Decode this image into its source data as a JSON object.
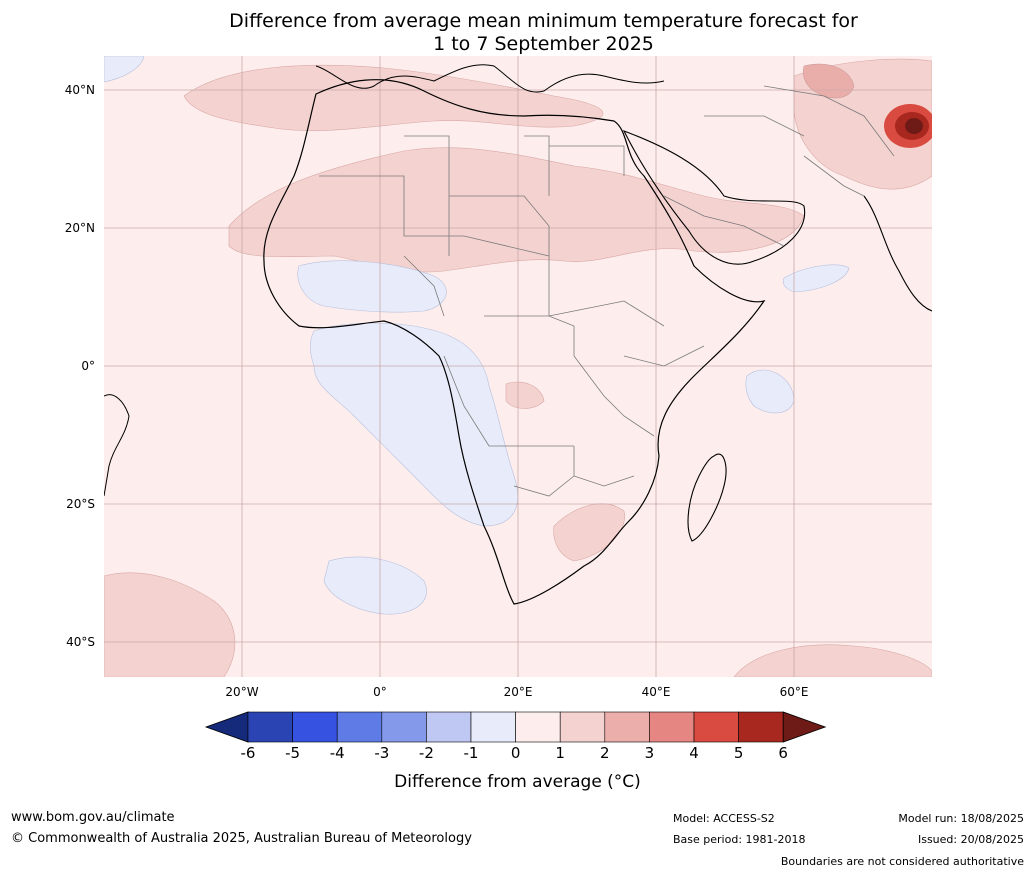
{
  "title": {
    "line1": "Difference from average mean minimum temperature forecast for",
    "line2": "1 to 7 September 2025"
  },
  "map": {
    "latitude_labels": [
      "40°N",
      "20°N",
      "0°",
      "20°S",
      "40°S"
    ],
    "longitude_labels": [
      "20°W",
      "0°",
      "20°E",
      "40°E",
      "60°E"
    ],
    "colors": {
      "ocean_base": "#fdeeed",
      "anomaly_0_1": "#fdeeed",
      "anomaly_1_2": "#f4d2d0",
      "anomaly_2_3": "#eaaeaa",
      "anomaly_minus1_0": "#e8ecfa",
      "anomaly_hot": "#8f1f1b",
      "coastline": "#000000",
      "border": "#7a7a7a",
      "gridline": "#c9a8a8"
    }
  },
  "colorbar": {
    "ticks": [
      "-6",
      "-5",
      "-4",
      "-3",
      "-2",
      "-1",
      "0",
      "1",
      "2",
      "3",
      "4",
      "5",
      "6"
    ],
    "colors": [
      "#152a7a",
      "#2a44b4",
      "#3552e0",
      "#5f7be6",
      "#8499ea",
      "#bfc8f3",
      "#e8ecfa",
      "#fdeeed",
      "#f4d2d0",
      "#ebaeaa",
      "#e68682",
      "#d94b40",
      "#a8271f",
      "#6e1a16"
    ],
    "label": "Difference from average ($^\\circ$C)",
    "label_display": "Difference from average (°C)"
  },
  "footer": {
    "website": "www.bom.gov.au/climate",
    "copyright": "© Commonwealth of Australia 2025, Australian Bureau of Meteorology",
    "model": "Model: ACCESS-S2",
    "base_period": "Base period: 1981-2018",
    "model_run": "Model run: 18/08/2025",
    "issued": "Issued: 20/08/2025",
    "disclaimer": "Boundaries are not considered authoritative"
  }
}
